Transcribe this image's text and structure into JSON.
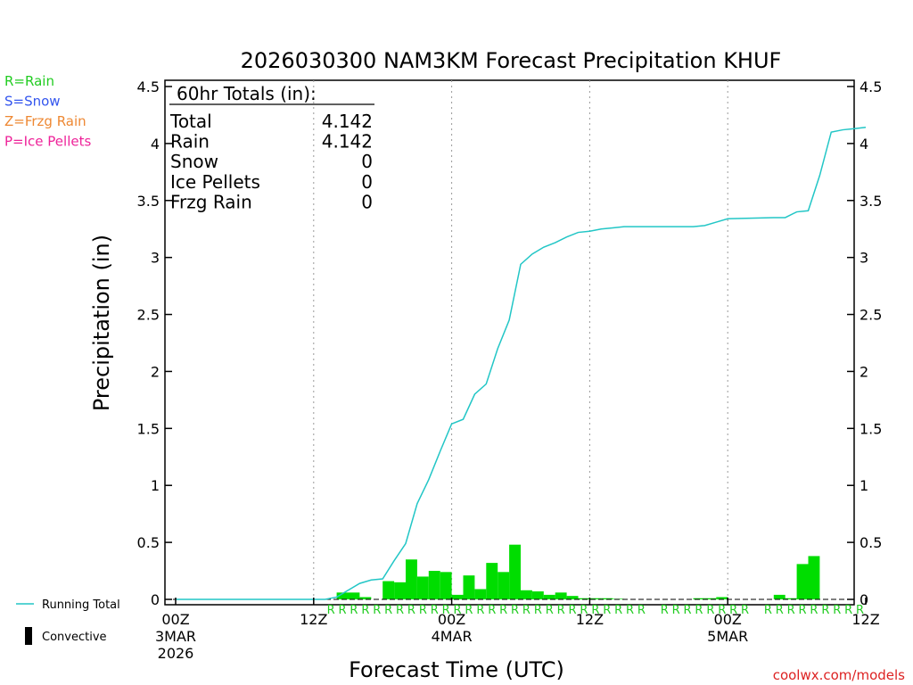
{
  "chart_data": {
    "type": "bar",
    "title": "2026030300 NAM3KM Forecast Precipitation KHUF",
    "xlabel": "Forecast Time (UTC)",
    "ylabel": "Precipitation (in)",
    "ylim": [
      0,
      4.5
    ],
    "yticks": [
      {
        "value": 0,
        "label": "0"
      },
      {
        "value": 0.5,
        "label": "0.5"
      },
      {
        "value": 1,
        "label": "1"
      },
      {
        "value": 1.5,
        "label": "1.5"
      },
      {
        "value": 2,
        "label": "2"
      },
      {
        "value": 2.5,
        "label": "2.5"
      },
      {
        "value": 3,
        "label": "3"
      },
      {
        "value": 3.5,
        "label": "3.5"
      },
      {
        "value": 4,
        "label": "4"
      },
      {
        "value": 4.5,
        "label": "4.5"
      }
    ],
    "xlim_hours": [
      0,
      60
    ],
    "xticks": [
      {
        "hour": 0,
        "lines": [
          "00Z",
          "3MAR",
          "2026"
        ]
      },
      {
        "hour": 12,
        "lines": [
          "12Z"
        ]
      },
      {
        "hour": 24,
        "lines": [
          "00Z",
          "4MAR"
        ]
      },
      {
        "hour": 36,
        "lines": [
          "12Z"
        ]
      },
      {
        "hour": 48,
        "lines": [
          "00Z",
          "5MAR"
        ]
      },
      {
        "hour": 60,
        "lines": [
          "12Z"
        ]
      }
    ],
    "vgrid_hours": [
      12,
      24,
      36,
      48
    ],
    "precip_type_legend": [
      {
        "code": "R",
        "text": "R=Rain",
        "color": "#22cc22"
      },
      {
        "code": "S",
        "text": "S=Snow",
        "color": "#3355ee"
      },
      {
        "code": "Z",
        "text": "Z=Frzg Rain",
        "color": "#ee8833"
      },
      {
        "code": "P",
        "text": "P=Ice Pellets",
        "color": "#ee2299"
      }
    ],
    "totals": {
      "header": "60hr Totals (in):",
      "rows": [
        {
          "label": "Total",
          "value": "4.142"
        },
        {
          "label": "Rain",
          "value": "4.142"
        },
        {
          "label": "Snow",
          "value": "0"
        },
        {
          "label": "Ice Pellets",
          "value": "0"
        },
        {
          "label": "Frzg Rain",
          "value": "0"
        }
      ]
    },
    "series": [
      {
        "name": "Hourly Precipitation",
        "kind": "bar",
        "color": "#00dd00",
        "x_hours": [
          15,
          16,
          17,
          19,
          20,
          21,
          22,
          23,
          24,
          25,
          26,
          27,
          28,
          29,
          30,
          31,
          32,
          33,
          34,
          35,
          36,
          37,
          38,
          39,
          46,
          47,
          48,
          53,
          54,
          55,
          56
        ],
        "values": [
          0.06,
          0.06,
          0.02,
          0.16,
          0.15,
          0.35,
          0.2,
          0.25,
          0.24,
          0.04,
          0.21,
          0.09,
          0.32,
          0.24,
          0.48,
          0.08,
          0.07,
          0.04,
          0.06,
          0.03,
          0.01,
          0.01,
          0.01,
          0.005,
          0.01,
          0.01,
          0.02,
          0.04,
          0.01,
          0.31,
          0.38
        ]
      },
      {
        "name": "Running Total",
        "kind": "line",
        "color": "#22c6c6",
        "x_hours": [
          0,
          13,
          14,
          15,
          16,
          17,
          18,
          19,
          20,
          21,
          22,
          23,
          24,
          25,
          26,
          27,
          28,
          29,
          30,
          31,
          32,
          33,
          34,
          35,
          36,
          37,
          38,
          39,
          40,
          44,
          45,
          46,
          47,
          48,
          52,
          53,
          54,
          55,
          56,
          57,
          58,
          59,
          60
        ],
        "values": [
          0,
          0,
          0.02,
          0.08,
          0.14,
          0.17,
          0.18,
          0.34,
          0.49,
          0.84,
          1.05,
          1.3,
          1.54,
          1.58,
          1.8,
          1.89,
          2.2,
          2.45,
          2.94,
          3.03,
          3.09,
          3.13,
          3.18,
          3.22,
          3.23,
          3.25,
          3.26,
          3.27,
          3.27,
          3.27,
          3.27,
          3.28,
          3.31,
          3.34,
          3.35,
          3.35,
          3.4,
          3.41,
          3.72,
          4.1,
          4.12,
          4.13,
          4.142
        ]
      }
    ],
    "precip_type_markers": {
      "color": "#22cc22",
      "symbol": "R",
      "hours": [
        14,
        15,
        16,
        17,
        18,
        19,
        20,
        21,
        22,
        23,
        24,
        25,
        26,
        27,
        28,
        29,
        30,
        31,
        32,
        33,
        34,
        35,
        36,
        37,
        38,
        39,
        40,
        41,
        43,
        44,
        45,
        46,
        47,
        48,
        49,
        50,
        52,
        53,
        54,
        55,
        56,
        57,
        58,
        59,
        60
      ]
    },
    "series_legend": [
      {
        "label": "Running Total",
        "symbol": "line",
        "color": "#22c6c6"
      },
      {
        "label": "Convective",
        "symbol": "box",
        "color": "#000000"
      }
    ],
    "credit": "coolwx.com/models"
  }
}
